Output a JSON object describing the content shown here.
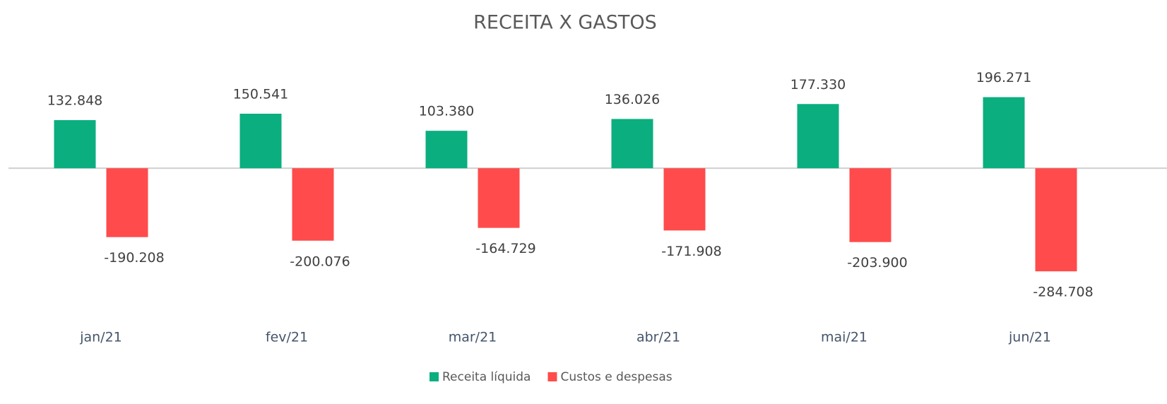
{
  "chart_data": {
    "type": "bar",
    "title": "RECEITA X GASTOS",
    "categories": [
      "jan/21",
      "fev/21",
      "mar/21",
      "abr/21",
      "mai/21",
      "jun/21"
    ],
    "series": [
      {
        "name": "Receita líquida",
        "color": "#0bae7f",
        "values": [
          132848,
          150541,
          103380,
          136026,
          177330,
          196271
        ],
        "value_labels": [
          "132.848",
          "150.541",
          "103.380",
          "136.026",
          "177.330",
          "196.271"
        ]
      },
      {
        "name": "Custos e despesas",
        "color": "#ff4b4b",
        "values": [
          -190208,
          -200076,
          -164729,
          -171908,
          -203900,
          -284708
        ],
        "value_labels": [
          "-190.208",
          "-200.076",
          "-164.729",
          "-171.908",
          "-203.900",
          "-284.708"
        ]
      }
    ],
    "ylim": [
      -300000,
      250000
    ]
  }
}
